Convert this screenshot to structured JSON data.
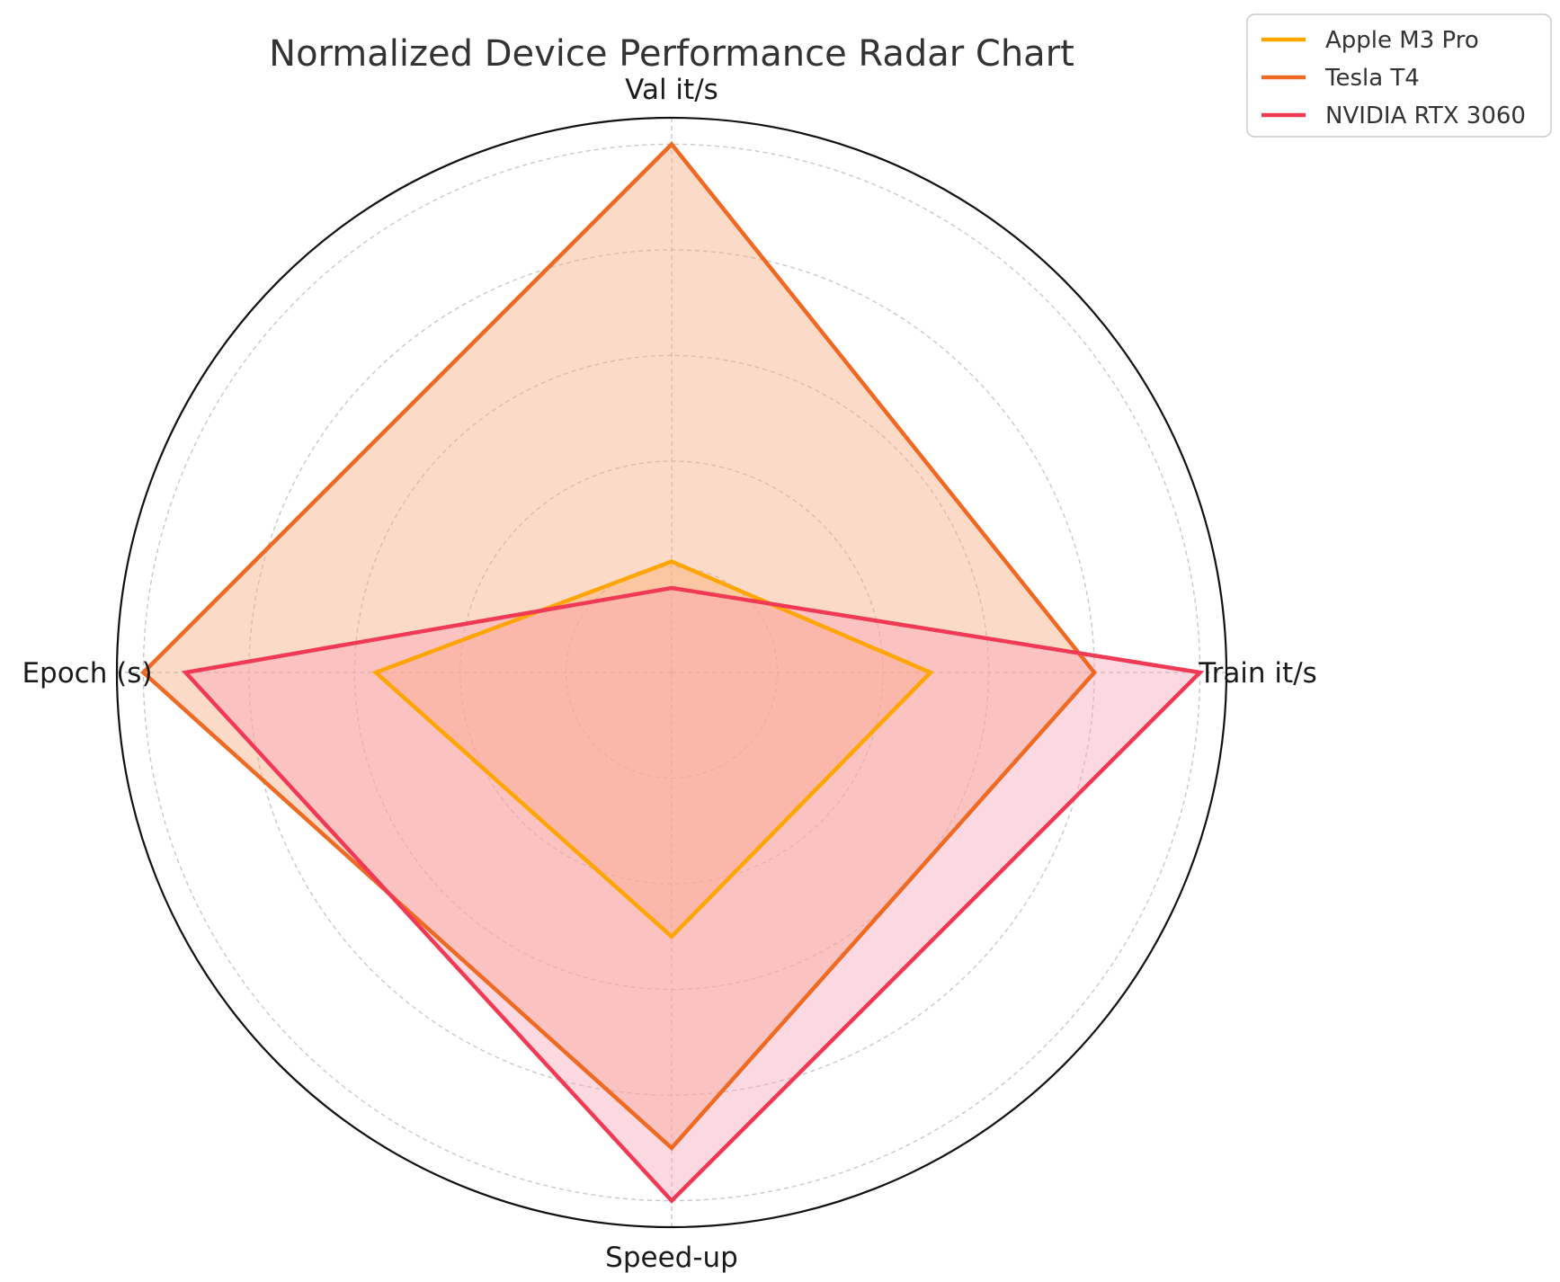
{
  "chart_data": {
    "type": "radar",
    "title": "Normalized Device Performance Radar Chart",
    "axes": [
      "Val it/s",
      "Train it/s",
      "Speed-up",
      "Epoch (s)"
    ],
    "rlim": [
      0,
      1.05
    ],
    "rgrid": [
      0.2,
      0.4,
      0.6,
      0.8,
      1.0
    ],
    "grid": true,
    "legend_position": "top-right",
    "series": [
      {
        "name": "Apple M3 Pro",
        "values": [
          0.21,
          0.49,
          0.5,
          0.56
        ],
        "color": "#FFA500",
        "fill": "#FFB266"
      },
      {
        "name": "Tesla T4",
        "values": [
          1.0,
          0.8,
          0.9,
          1.0
        ],
        "color": "#EE6A23",
        "fill": "#F5A77B"
      },
      {
        "name": "NVIDIA RTX 3060",
        "values": [
          0.16,
          1.0,
          1.0,
          0.92
        ],
        "color": "#F03A55",
        "fill": "#F8A2B4"
      }
    ]
  }
}
